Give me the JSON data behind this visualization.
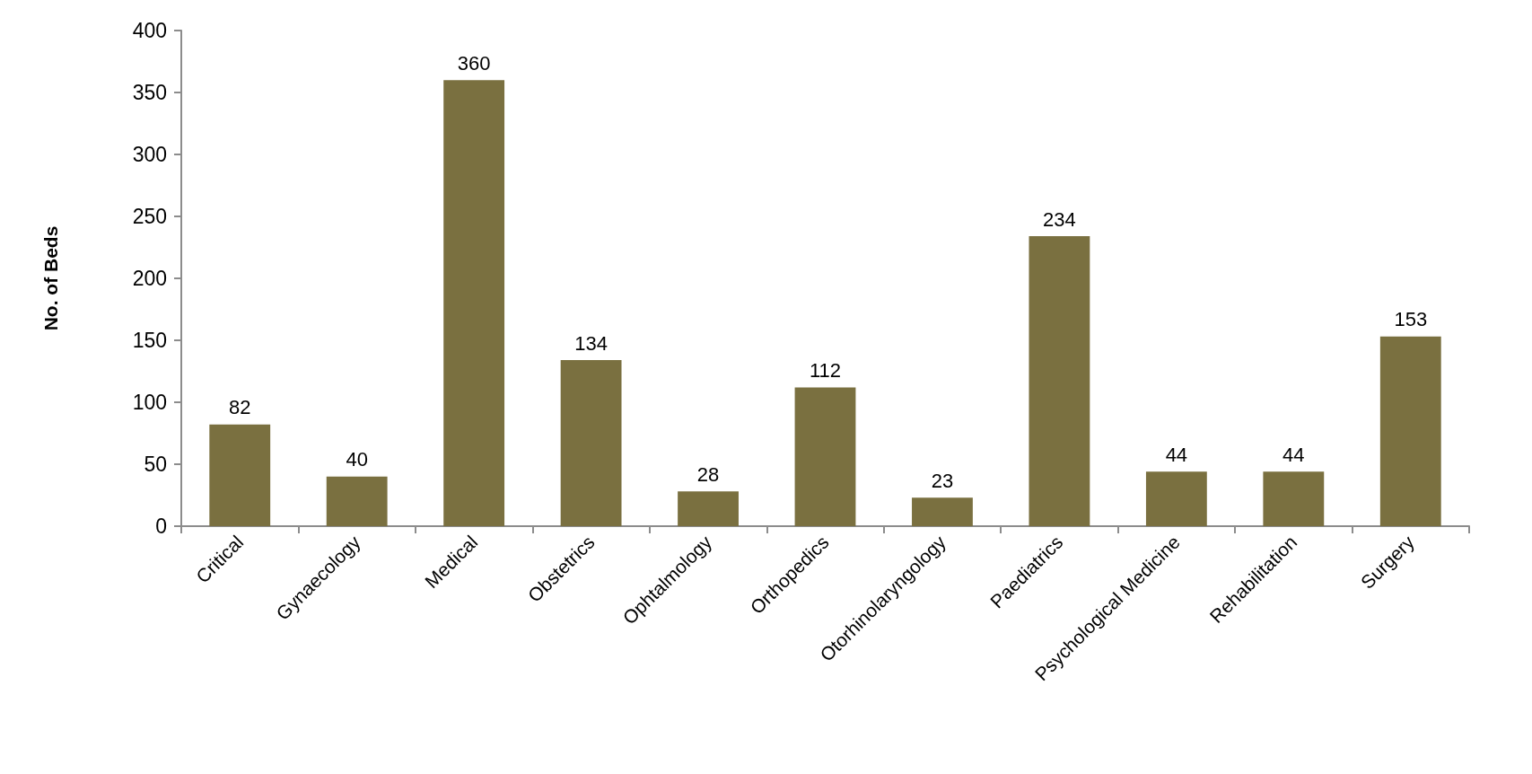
{
  "chart_data": {
    "type": "bar",
    "ylabel": "No. of Beds",
    "categories": [
      "Critical",
      "Gynaecology",
      "Medical",
      "Obstetrics",
      "Ophtalmology",
      "Orthopedics",
      "Otorhinolaryngology",
      "Paediatrics",
      "Psychological Medicine",
      "Rehabilitation",
      "Surgery"
    ],
    "values": [
      82,
      40,
      360,
      134,
      28,
      112,
      23,
      234,
      44,
      44,
      153
    ],
    "color": "#7a7040",
    "ylim": [
      0,
      400
    ],
    "yticks": [
      0,
      50,
      100,
      150,
      200,
      250,
      300,
      350,
      400
    ],
    "data_labels": true,
    "grid": false
  }
}
